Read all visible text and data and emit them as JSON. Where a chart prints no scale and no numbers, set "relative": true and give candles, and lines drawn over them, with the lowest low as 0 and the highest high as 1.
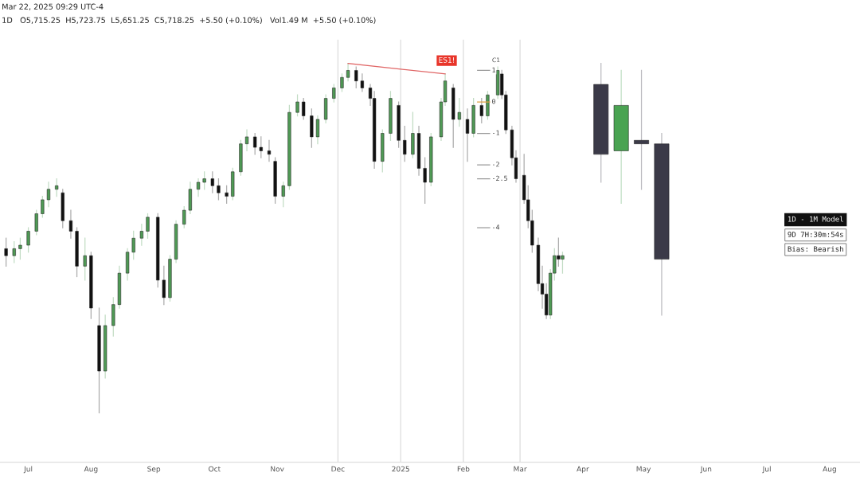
{
  "chart_data": {
    "type": "candlestick",
    "relative": true,
    "title": "Mar 22, 2025 09:29 UTC-4",
    "subtitle": "1D   O5,715.25  H5,723.75  L5,651.25  C5,718.25  +5.50 (+0.10%)   Vol1.49 M  +5.50 (+0.10%)",
    "xlim": [
      "2024-06-17",
      "2025-08-16"
    ],
    "xticks": [
      {
        "value": "2024-07-01",
        "label": "Jul"
      },
      {
        "value": "2024-08-01",
        "label": "Aug"
      },
      {
        "value": "2024-09-01",
        "label": "Sep"
      },
      {
        "value": "2024-10-01",
        "label": "Oct"
      },
      {
        "value": "2024-11-01",
        "label": "Nov"
      },
      {
        "value": "2024-12-01",
        "label": "Dec"
      },
      {
        "value": "2025-01-01",
        "label": "2025"
      },
      {
        "value": "2025-02-01",
        "label": "Feb"
      },
      {
        "value": "2025-03-01",
        "label": "Mar"
      },
      {
        "value": "2025-04-01",
        "label": "Apr"
      },
      {
        "value": "2025-05-01",
        "label": "May"
      },
      {
        "value": "2025-06-01",
        "label": "Jun"
      },
      {
        "value": "2025-07-01",
        "label": "Jul"
      },
      {
        "value": "2025-08-01",
        "label": "Aug"
      }
    ],
    "grid": false,
    "series": [
      {
        "x": [
          "2024-06-20",
          "2024-06-24",
          "2024-06-27",
          "2024-07-01",
          "2024-07-05",
          "2024-07-08",
          "2024-07-11",
          "2024-07-15",
          "2024-07-18",
          "2024-07-22",
          "2024-07-25",
          "2024-07-29",
          "2024-08-01",
          "2024-08-05",
          "2024-08-08",
          "2024-08-12",
          "2024-08-15",
          "2024-08-19",
          "2024-08-22",
          "2024-08-26",
          "2024-08-29",
          "2024-09-03",
          "2024-09-06",
          "2024-09-09",
          "2024-09-12",
          "2024-09-16",
          "2024-09-19",
          "2024-09-23",
          "2024-09-26",
          "2024-09-30",
          "2024-10-03",
          "2024-10-07",
          "2024-10-10",
          "2024-10-14",
          "2024-10-17",
          "2024-10-21",
          "2024-10-24",
          "2024-10-28",
          "2024-10-31",
          "2024-11-04",
          "2024-11-07",
          "2024-11-11",
          "2024-11-14",
          "2024-11-18",
          "2024-11-21",
          "2024-11-25",
          "2024-11-29",
          "2024-12-03",
          "2024-12-06",
          "2024-12-10",
          "2024-12-13",
          "2024-12-17",
          "2024-12-19",
          "2024-12-23",
          "2024-12-27",
          "2024-12-31",
          "2025-01-03",
          "2025-01-07",
          "2025-01-10",
          "2025-01-13",
          "2025-01-16",
          "2025-01-21",
          "2025-01-23",
          "2025-01-27",
          "2025-01-30",
          "2025-02-03",
          "2025-02-06",
          "2025-02-10",
          "2025-02-13",
          "2025-02-18",
          "2025-02-20",
          "2025-02-22",
          "2025-02-25",
          "2025-02-27",
          "2025-03-03",
          "2025-03-05",
          "2025-03-07",
          "2025-03-10",
          "2025-03-12",
          "2025-03-14",
          "2025-03-16",
          "2025-03-18",
          "2025-03-20",
          "2025-03-22"
        ],
        "ohlc": [
          [
            0.47,
            0.5,
            0.42,
            0.45
          ],
          [
            0.45,
            0.49,
            0.43,
            0.47
          ],
          [
            0.47,
            0.5,
            0.44,
            0.48
          ],
          [
            0.48,
            0.53,
            0.46,
            0.52
          ],
          [
            0.52,
            0.58,
            0.51,
            0.57
          ],
          [
            0.57,
            0.62,
            0.56,
            0.61
          ],
          [
            0.61,
            0.66,
            0.59,
            0.64
          ],
          [
            0.64,
            0.67,
            0.62,
            0.65
          ],
          [
            0.63,
            0.64,
            0.53,
            0.55
          ],
          [
            0.55,
            0.58,
            0.5,
            0.52
          ],
          [
            0.52,
            0.53,
            0.39,
            0.42
          ],
          [
            0.42,
            0.5,
            0.38,
            0.45
          ],
          [
            0.45,
            0.46,
            0.27,
            0.3
          ],
          [
            0.25,
            0.3,
            0.0,
            0.12
          ],
          [
            0.12,
            0.28,
            0.1,
            0.25
          ],
          [
            0.25,
            0.33,
            0.22,
            0.31
          ],
          [
            0.31,
            0.42,
            0.3,
            0.4
          ],
          [
            0.4,
            0.47,
            0.38,
            0.46
          ],
          [
            0.46,
            0.52,
            0.44,
            0.5
          ],
          [
            0.5,
            0.54,
            0.48,
            0.52
          ],
          [
            0.52,
            0.57,
            0.5,
            0.56
          ],
          [
            0.56,
            0.57,
            0.36,
            0.38
          ],
          [
            0.38,
            0.42,
            0.31,
            0.33
          ],
          [
            0.33,
            0.45,
            0.32,
            0.44
          ],
          [
            0.44,
            0.55,
            0.43,
            0.54
          ],
          [
            0.54,
            0.59,
            0.53,
            0.58
          ],
          [
            0.58,
            0.66,
            0.57,
            0.64
          ],
          [
            0.64,
            0.67,
            0.62,
            0.66
          ],
          [
            0.66,
            0.69,
            0.64,
            0.67
          ],
          [
            0.67,
            0.69,
            0.63,
            0.65
          ],
          [
            0.65,
            0.67,
            0.61,
            0.63
          ],
          [
            0.63,
            0.65,
            0.6,
            0.62
          ],
          [
            0.62,
            0.7,
            0.61,
            0.69
          ],
          [
            0.69,
            0.78,
            0.68,
            0.77
          ],
          [
            0.77,
            0.81,
            0.75,
            0.79
          ],
          [
            0.79,
            0.8,
            0.74,
            0.76
          ],
          [
            0.76,
            0.79,
            0.73,
            0.75
          ],
          [
            0.75,
            0.78,
            0.72,
            0.74
          ],
          [
            0.72,
            0.73,
            0.6,
            0.62
          ],
          [
            0.62,
            0.66,
            0.59,
            0.65
          ],
          [
            0.65,
            0.88,
            0.64,
            0.86
          ],
          [
            0.86,
            0.91,
            0.85,
            0.89
          ],
          [
            0.89,
            0.9,
            0.84,
            0.85
          ],
          [
            0.85,
            0.87,
            0.76,
            0.79
          ],
          [
            0.79,
            0.85,
            0.77,
            0.84
          ],
          [
            0.84,
            0.91,
            0.83,
            0.9
          ],
          [
            0.9,
            0.94,
            0.89,
            0.93
          ],
          [
            0.93,
            0.97,
            0.92,
            0.96
          ],
          [
            0.96,
            1.0,
            0.95,
            0.98
          ],
          [
            0.98,
            0.99,
            0.93,
            0.95
          ],
          [
            0.95,
            0.97,
            0.92,
            0.93
          ],
          [
            0.93,
            0.94,
            0.88,
            0.9
          ],
          [
            0.9,
            0.92,
            0.7,
            0.72
          ],
          [
            0.72,
            0.81,
            0.69,
            0.8
          ],
          [
            0.8,
            0.92,
            0.78,
            0.9
          ],
          [
            0.88,
            0.89,
            0.76,
            0.78
          ],
          [
            0.78,
            0.82,
            0.72,
            0.74
          ],
          [
            0.74,
            0.86,
            0.73,
            0.8
          ],
          [
            0.8,
            0.82,
            0.68,
            0.7
          ],
          [
            0.7,
            0.73,
            0.6,
            0.66
          ],
          [
            0.66,
            0.8,
            0.65,
            0.79
          ],
          [
            0.79,
            0.9,
            0.78,
            0.89
          ],
          [
            0.89,
            0.97,
            0.88,
            0.95
          ],
          [
            0.93,
            0.94,
            0.76,
            0.84
          ],
          [
            0.84,
            0.9,
            0.82,
            0.86
          ],
          [
            0.84,
            0.87,
            0.72,
            0.8
          ],
          [
            0.8,
            0.9,
            0.79,
            0.88
          ],
          [
            0.88,
            0.9,
            0.83,
            0.85
          ],
          [
            0.85,
            0.92,
            0.84,
            0.91
          ],
          [
            0.91,
            0.99,
            0.9,
            0.98
          ],
          [
            0.97,
            0.98,
            0.9,
            0.91
          ],
          [
            0.91,
            0.92,
            0.8,
            0.81
          ],
          [
            0.81,
            0.82,
            0.71,
            0.73
          ],
          [
            0.73,
            0.75,
            0.66,
            0.67
          ],
          [
            0.68,
            0.74,
            0.6,
            0.61
          ],
          [
            0.61,
            0.65,
            0.53,
            0.55
          ],
          [
            0.55,
            0.58,
            0.46,
            0.48
          ],
          [
            0.48,
            0.5,
            0.35,
            0.37
          ],
          [
            0.37,
            0.42,
            0.3,
            0.34
          ],
          [
            0.34,
            0.37,
            0.27,
            0.28
          ],
          [
            0.28,
            0.41,
            0.27,
            0.4
          ],
          [
            0.4,
            0.47,
            0.38,
            0.45
          ],
          [
            0.45,
            0.5,
            0.42,
            0.44
          ],
          [
            0.44,
            0.46,
            0.4,
            0.45
          ]
        ],
        "colors": [
          "#111111",
          "#4f9a55",
          "#4f9a55",
          "#4f9a55",
          "#4f9a55",
          "#4f9a55",
          "#4f9a55",
          "#4f9a55",
          "#111111",
          "#111111",
          "#111111",
          "#4f9a55",
          "#111111",
          "#111111",
          "#4f9a55",
          "#4f9a55",
          "#4f9a55",
          "#4f9a55",
          "#4f9a55",
          "#4f9a55",
          "#4f9a55",
          "#111111",
          "#111111",
          "#4f9a55",
          "#4f9a55",
          "#4f9a55",
          "#4f9a55",
          "#4f9a55",
          "#4f9a55",
          "#111111",
          "#111111",
          "#111111",
          "#4f9a55",
          "#4f9a55",
          "#4f9a55",
          "#111111",
          "#111111",
          "#111111",
          "#111111",
          "#4f9a55",
          "#4f9a55",
          "#4f9a55",
          "#111111",
          "#111111",
          "#4f9a55",
          "#4f9a55",
          "#4f9a55",
          "#4f9a55",
          "#4f9a55",
          "#111111",
          "#111111",
          "#111111",
          "#111111",
          "#4f9a55",
          "#4f9a55",
          "#111111",
          "#111111",
          "#4f9a55",
          "#111111",
          "#111111",
          "#4f9a55",
          "#4f9a55",
          "#4f9a55",
          "#111111",
          "#4f9a55",
          "#111111",
          "#4f9a55",
          "#111111",
          "#4f9a55",
          "#4f9a55",
          "#111111",
          "#111111",
          "#111111",
          "#111111",
          "#111111",
          "#111111",
          "#111111",
          "#111111",
          "#111111",
          "#111111",
          "#4f9a55",
          "#4f9a55",
          "#111111",
          "#4f9a55"
        ]
      },
      {
        "x": [
          "2025-04-10",
          "2025-04-20",
          "2025-04-30",
          "2025-05-10"
        ],
        "ohlc": [
          [
            0.94,
            1.0,
            0.66,
            0.74
          ],
          [
            0.75,
            0.98,
            0.6,
            0.88
          ],
          [
            0.78,
            0.98,
            0.64,
            0.77
          ],
          [
            0.77,
            0.8,
            0.28,
            0.44
          ]
        ],
        "colors": [
          "#3b3a48",
          "#4aa352",
          "#3b3a48",
          "#3b3a48"
        ]
      },
      {
        "type": "line",
        "x": [
          "2024-12-06",
          "2025-01-23"
        ],
        "values": [
          1.0,
          0.97
        ],
        "color": "#e06666"
      },
      {
        "type": "line",
        "name": "1",
        "x": [
          "2025-02-08",
          "2025-02-14"
        ],
        "values": [
          0.98,
          0.98
        ],
        "color": "#9a9a9a"
      },
      {
        "type": "line",
        "name": "0",
        "x": [
          "2025-02-08",
          "2025-02-14"
        ],
        "values": [
          0.89,
          0.89
        ],
        "color": "#e0a040"
      },
      {
        "type": "line",
        "name": "-1",
        "x": [
          "2025-02-08",
          "2025-02-14"
        ],
        "values": [
          0.8,
          0.8
        ],
        "color": "#9a9a9a"
      },
      {
        "type": "line",
        "name": "-2",
        "x": [
          "2025-02-08",
          "2025-02-14"
        ],
        "values": [
          0.71,
          0.71
        ],
        "color": "#9a9a9a"
      },
      {
        "type": "line",
        "name": "-2.5",
        "x": [
          "2025-02-08",
          "2025-02-14"
        ],
        "values": [
          0.67,
          0.67
        ],
        "color": "#9a9a9a"
      },
      {
        "type": "line",
        "name": "-4",
        "x": [
          "2025-02-08",
          "2025-02-14"
        ],
        "values": [
          0.53,
          0.53
        ],
        "color": "#9a9a9a"
      }
    ],
    "ref_lines": [
      {
        "axis": "x",
        "value": "2024-12-01",
        "label": null,
        "color": "#d8d8d8"
      },
      {
        "axis": "x",
        "value": "2025-01-01",
        "label": null,
        "color": "#d8d8d8"
      },
      {
        "axis": "x",
        "value": "2025-02-01",
        "label": null,
        "color": "#d8d8d8"
      },
      {
        "axis": "x",
        "value": "2025-03-01",
        "label": null,
        "color": "#d8d8d8"
      }
    ],
    "annotations": [
      "C1",
      "ES1!",
      "1D - 1M Model",
      "9D 7H:30m:54s",
      "Bias: Bearish"
    ]
  }
}
